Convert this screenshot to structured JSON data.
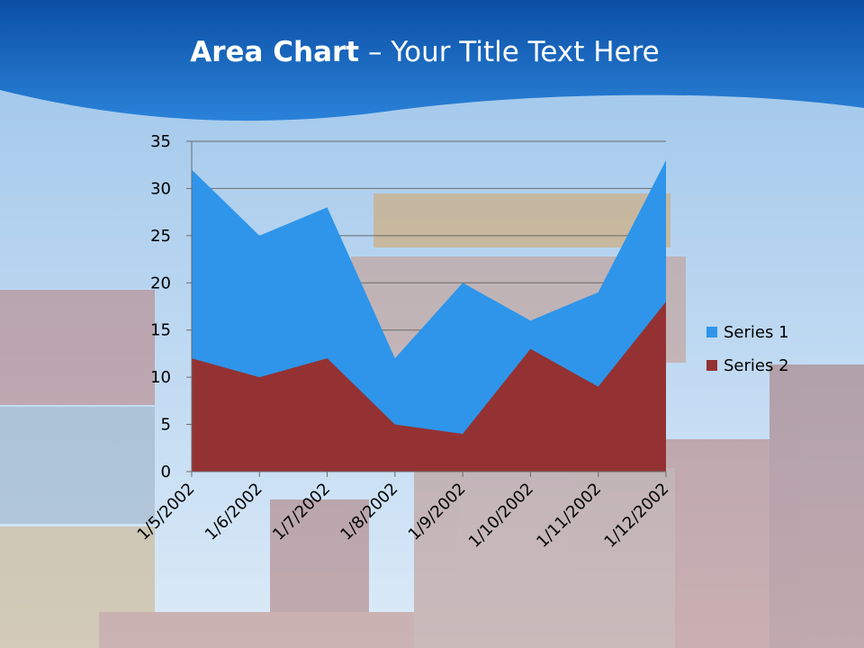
{
  "title": {
    "bold": "Area Chart",
    "sep": " – ",
    "rest": "Your Title Text Here"
  },
  "colors": {
    "series1": "#2e95ea",
    "series2": "#943233",
    "banner": "#1c6bc4"
  },
  "chart_data": {
    "type": "area",
    "categories": [
      "1/5/2002",
      "1/6/2002",
      "1/7/2002",
      "1/8/2002",
      "1/9/2002",
      "1/10/2002",
      "1/11/2002",
      "1/12/2002"
    ],
    "series": [
      {
        "name": "Series 1",
        "values": [
          32,
          25,
          28,
          12,
          20,
          16,
          19,
          33
        ]
      },
      {
        "name": "Series 2",
        "values": [
          12,
          10,
          12,
          5,
          4,
          13,
          9,
          18
        ]
      }
    ],
    "ylim": [
      0,
      35
    ],
    "yticks": [
      0,
      5,
      10,
      15,
      20,
      25,
      30,
      35
    ],
    "grid": true,
    "legend": "right",
    "stacked": false
  }
}
